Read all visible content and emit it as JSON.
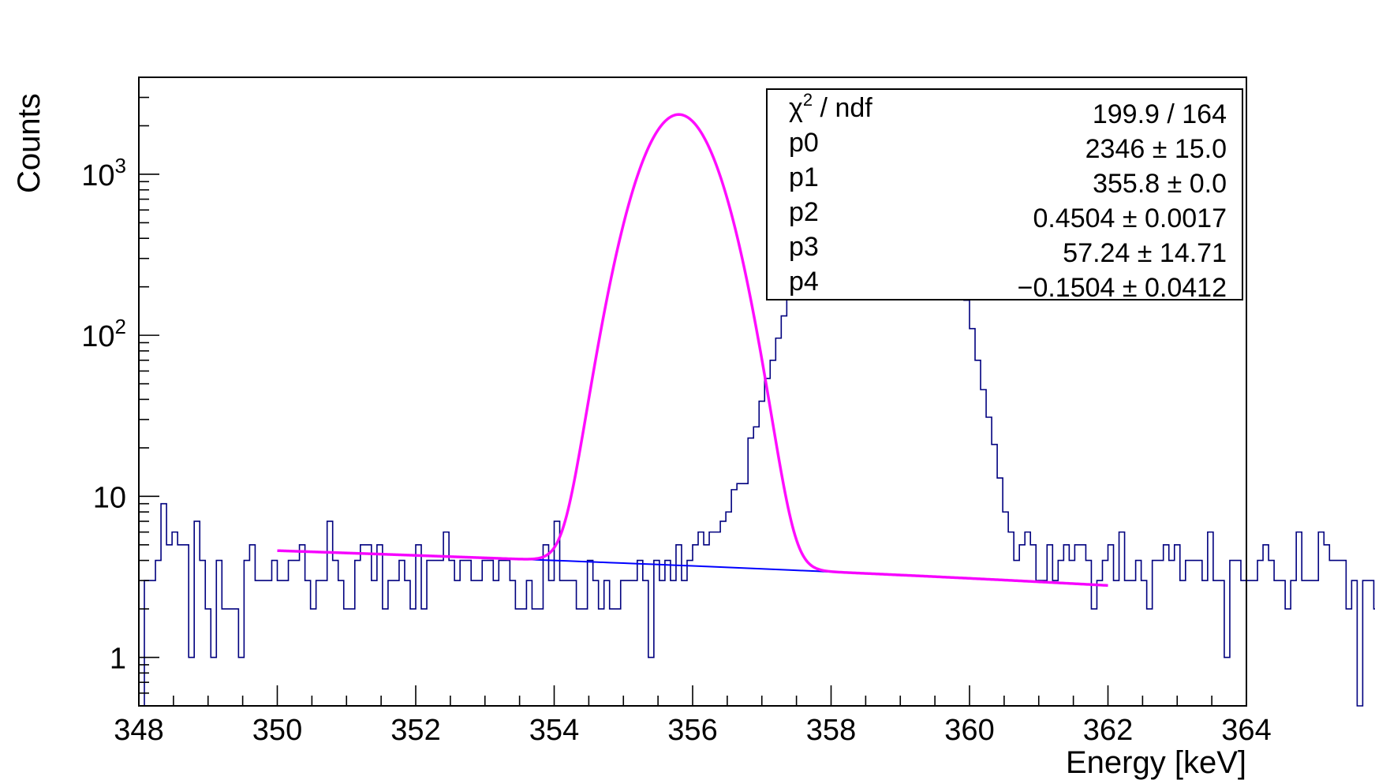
{
  "chart_data": {
    "type": "histogram",
    "xlabel": "Energy [keV]",
    "ylabel": "Counts",
    "x_range": [
      348,
      364
    ],
    "y_range": [
      0.5,
      4000
    ],
    "y_scale": "log",
    "bin_width": 0.08,
    "x_ticks": [
      "348",
      "350",
      "352",
      "354",
      "356",
      "358",
      "360",
      "362",
      "364"
    ],
    "y_ticks": [
      {
        "value": 1,
        "label": "1",
        "sup": ""
      },
      {
        "value": 10,
        "label": "10",
        "sup": ""
      },
      {
        "value": 100,
        "label": "10",
        "sup": "2"
      },
      {
        "value": 1000,
        "label": "10",
        "sup": "3"
      }
    ],
    "histogram_color": "#00007f",
    "fit_color": "#ff00ff",
    "background_color": "#0000ff",
    "counts": [
      0,
      3,
      3,
      4,
      9,
      5,
      6,
      5,
      5,
      1,
      7,
      4,
      2,
      1,
      4,
      2,
      2,
      2,
      1,
      4,
      5,
      3,
      3,
      3,
      4,
      3,
      3,
      4,
      4,
      5,
      3,
      2,
      3,
      3,
      7,
      4,
      3,
      2,
      2,
      4,
      5,
      5,
      3,
      5,
      2,
      3,
      3,
      4,
      3,
      2,
      5,
      2,
      4,
      4,
      4,
      6,
      4,
      3,
      4,
      4,
      3,
      3,
      4,
      4,
      3,
      4,
      4,
      3,
      2,
      2,
      3,
      2,
      2,
      5,
      3,
      7,
      3,
      3,
      3,
      2,
      2,
      4,
      3,
      2,
      3,
      2,
      2,
      3,
      3,
      3,
      4,
      3,
      1,
      4,
      3,
      4,
      3,
      5,
      3,
      4,
      5,
      6,
      5,
      6,
      6,
      7,
      8,
      11,
      12,
      12,
      23,
      27,
      39,
      54,
      70,
      96,
      132,
      166,
      224,
      299,
      373,
      479,
      581,
      696,
      860,
      1005,
      1167,
      1324,
      1536,
      1762,
      1928,
      2082,
      2226,
      2292,
      2309,
      2292,
      2246,
      2161,
      2039,
      1865,
      1700,
      1493,
      1250,
      1030,
      830,
      650,
      485,
      350,
      240,
      165,
      110,
      70,
      46,
      31,
      21,
      13,
      8,
      6,
      4,
      5,
      6,
      5,
      3,
      3,
      5,
      3,
      4,
      5,
      4,
      5,
      5,
      4,
      2,
      3,
      4,
      5,
      3,
      6,
      3,
      3,
      4,
      3,
      2,
      4,
      4,
      5,
      4,
      5,
      3,
      4,
      4,
      4,
      3,
      6,
      3,
      3,
      1,
      4,
      4,
      3,
      3,
      3,
      4,
      5,
      4,
      3,
      3,
      2,
      3,
      6,
      3,
      3,
      3,
      6,
      5,
      4,
      4,
      4,
      2,
      3,
      0,
      3,
      3,
      2,
      4,
      3,
      2,
      3,
      3,
      3,
      4,
      3,
      6,
      2,
      2,
      4,
      3,
      4,
      3,
      2,
      2,
      1,
      2,
      3,
      3,
      3,
      2,
      3,
      5,
      4,
      6,
      3,
      5,
      3,
      3,
      5,
      4,
      3,
      3,
      4,
      3,
      1,
      5,
      5,
      3,
      4,
      1,
      5,
      5
    ],
    "fit": {
      "model": "gaussian + linear background",
      "range": [
        350,
        362
      ],
      "p0": 2346,
      "p1": 355.8,
      "p2": 0.4504,
      "p3": 57.24,
      "p4": -0.1504
    },
    "stats_box": {
      "position": "top-right",
      "rows": [
        {
          "key": "χ",
          "sup": "2",
          "key_rest": " / ndf",
          "value": "199.9 / 164"
        },
        {
          "key": "p0",
          "sup": "",
          "key_rest": "",
          "value": "2346 ± 15.0"
        },
        {
          "key": "p1",
          "sup": "",
          "key_rest": "",
          "value": "355.8 ± 0.0"
        },
        {
          "key": "p2",
          "sup": "",
          "key_rest": "",
          "value": "0.4504 ± 0.0017"
        },
        {
          "key": "p3",
          "sup": "",
          "key_rest": "",
          "value": "57.24 ± 14.71"
        },
        {
          "key": "p4",
          "sup": "",
          "key_rest": "",
          "value": "−0.1504 ± 0.0412"
        }
      ]
    }
  }
}
